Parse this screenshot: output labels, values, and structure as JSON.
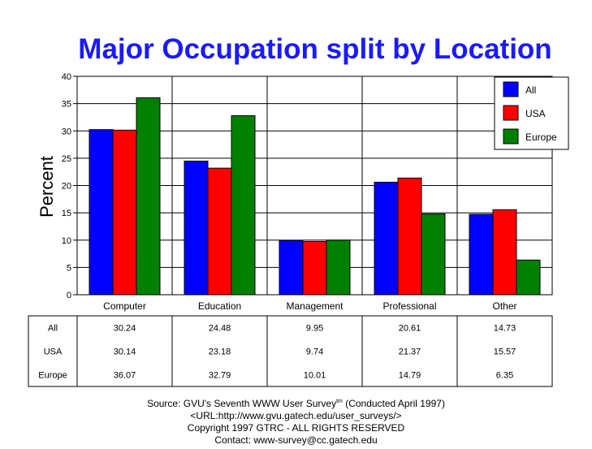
{
  "chart_data": {
    "type": "bar",
    "title": "Major Occupation split by Location",
    "ylabel": "Percent",
    "ylim": [
      0,
      40
    ],
    "yticks": [
      0,
      5,
      10,
      15,
      20,
      25,
      30,
      35,
      40
    ],
    "grid": true,
    "legend_position": "top-right",
    "categories": [
      "Computer",
      "Education",
      "Management",
      "Professional",
      "Other"
    ],
    "series": [
      {
        "name": "All",
        "color": "#0000ff",
        "values": [
          30.24,
          24.48,
          9.95,
          20.61,
          14.73
        ],
        "labels": [
          "30.24",
          "24.48",
          "9.95",
          "20.61",
          "14.73"
        ]
      },
      {
        "name": "USA",
        "color": "#ff0000",
        "values": [
          30.14,
          23.18,
          9.74,
          21.37,
          15.57
        ],
        "labels": [
          "30.14",
          "23.18",
          "9.74",
          "21.37",
          "15.57"
        ]
      },
      {
        "name": "Europe",
        "color": "#008000",
        "values": [
          36.07,
          32.79,
          10.01,
          14.79,
          6.35
        ],
        "labels": [
          "36.07",
          "32.79",
          "10.01",
          "14.79",
          "6.35"
        ]
      }
    ]
  },
  "footer": {
    "source_prefix": "Source: GVU's Seventh WWW User Survey",
    "source_sup": "tm",
    "source_suffix": " (Conducted April 1997)",
    "url": "<URL:http://www.gvu.gatech.edu/user_surveys/>",
    "copyright": "Copyright 1997 GTRC - ALL RIGHTS RESERVED",
    "contact": "Contact: www-survey@cc.gatech.edu"
  }
}
